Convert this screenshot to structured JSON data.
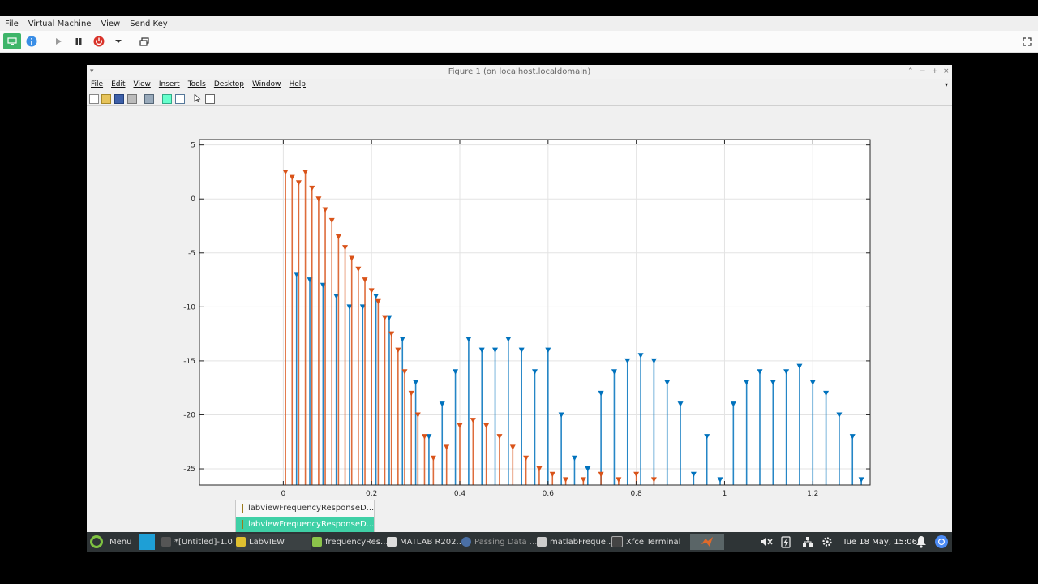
{
  "vm": {
    "menu": [
      "File",
      "Virtual Machine",
      "View",
      "Send Key"
    ],
    "toolbar_icons": [
      "monitor-icon",
      "info-icon",
      "play-icon",
      "pause-icon",
      "power-icon",
      "dropdown-arrow-icon",
      "screens-icon",
      "fullscreen-icon"
    ]
  },
  "figure": {
    "title": "Figure 1 (on localhost.localdomain)",
    "menu": [
      "File",
      "Edit",
      "View",
      "Insert",
      "Tools",
      "Desktop",
      "Window",
      "Help"
    ]
  },
  "chart_data": {
    "type": "stem",
    "xlim": [
      -0.19,
      1.33
    ],
    "ylim": [
      -26.5,
      5.5
    ],
    "x_ticks": [
      0,
      0.2,
      0.4,
      0.6,
      0.8,
      1,
      1.2
    ],
    "x_tick_labels": [
      "0",
      "0.2",
      "0.4",
      "0.6",
      "0.8",
      "1",
      "1.2"
    ],
    "y_ticks": [
      5,
      0,
      -5,
      -10,
      -15,
      -20,
      -25
    ],
    "y_tick_labels": [
      "5",
      "0",
      "-5",
      "-10",
      "-15",
      "-20",
      "-25"
    ],
    "grid": true,
    "marker": "downward-triangle",
    "baseline": -26.5,
    "series": [
      {
        "color": "#0072bd",
        "x": [
          0.03,
          0.06,
          0.09,
          0.12,
          0.15,
          0.18,
          0.21,
          0.24,
          0.27,
          0.3,
          0.33,
          0.36,
          0.39,
          0.42,
          0.45,
          0.48,
          0.51,
          0.54,
          0.57,
          0.6,
          0.63,
          0.66,
          0.69,
          0.72,
          0.75,
          0.78,
          0.81,
          0.84,
          0.87,
          0.9,
          0.93,
          0.96,
          0.99,
          1.02,
          1.05,
          1.08,
          1.11,
          1.14,
          1.17,
          1.2,
          1.23,
          1.26,
          1.29,
          1.31
        ],
        "y": [
          -7,
          -7.5,
          -8,
          -9,
          -10,
          -10,
          -9,
          -11,
          -13,
          -17,
          -22,
          -19,
          -16,
          -13,
          -14,
          -14,
          -13,
          -14,
          -16,
          -14,
          -20,
          -24,
          -25,
          -18,
          -16,
          -15,
          -14.5,
          -15,
          -17,
          -19,
          -25.5,
          -22,
          -26,
          -19,
          -17,
          -16,
          -17,
          -16,
          -15.5,
          -17,
          -18,
          -20,
          -22,
          -26
        ]
      },
      {
        "color": "#d95319",
        "x": [
          0.005,
          0.02,
          0.035,
          0.05,
          0.065,
          0.08,
          0.095,
          0.11,
          0.125,
          0.14,
          0.155,
          0.17,
          0.185,
          0.2,
          0.215,
          0.23,
          0.245,
          0.26,
          0.275,
          0.29,
          0.305,
          0.32,
          0.34,
          0.37,
          0.4,
          0.43,
          0.46,
          0.49,
          0.52,
          0.55,
          0.58,
          0.61,
          0.64,
          0.68,
          0.72,
          0.76,
          0.8,
          0.84
        ],
        "y": [
          2.5,
          2,
          1.5,
          2.5,
          1,
          0,
          -1,
          -2,
          -3.5,
          -4.5,
          -5.5,
          -6.5,
          -7.5,
          -8.5,
          -9.5,
          -11,
          -12.5,
          -14,
          -16,
          -18,
          -20,
          -22,
          -24,
          -23,
          -21,
          -20.5,
          -21,
          -22,
          -23,
          -24,
          -25,
          -25.5,
          -26,
          -26,
          -25.5,
          -26,
          -25.5,
          -26
        ]
      }
    ]
  },
  "popup": {
    "items": [
      "labviewFrequencyResponseD...",
      "labviewFrequencyResponseD..."
    ],
    "selected_index": 1
  },
  "taskbar": {
    "menu_label": "Menu",
    "tasks": [
      "*[Untitled]-1.0...",
      "LabVIEW",
      "frequencyRes...",
      "MATLAB R202...",
      "Passing Data ...",
      "matlabFreque...",
      "Xfce Terminal"
    ],
    "clock": "Tue 18 May, 15:06"
  }
}
